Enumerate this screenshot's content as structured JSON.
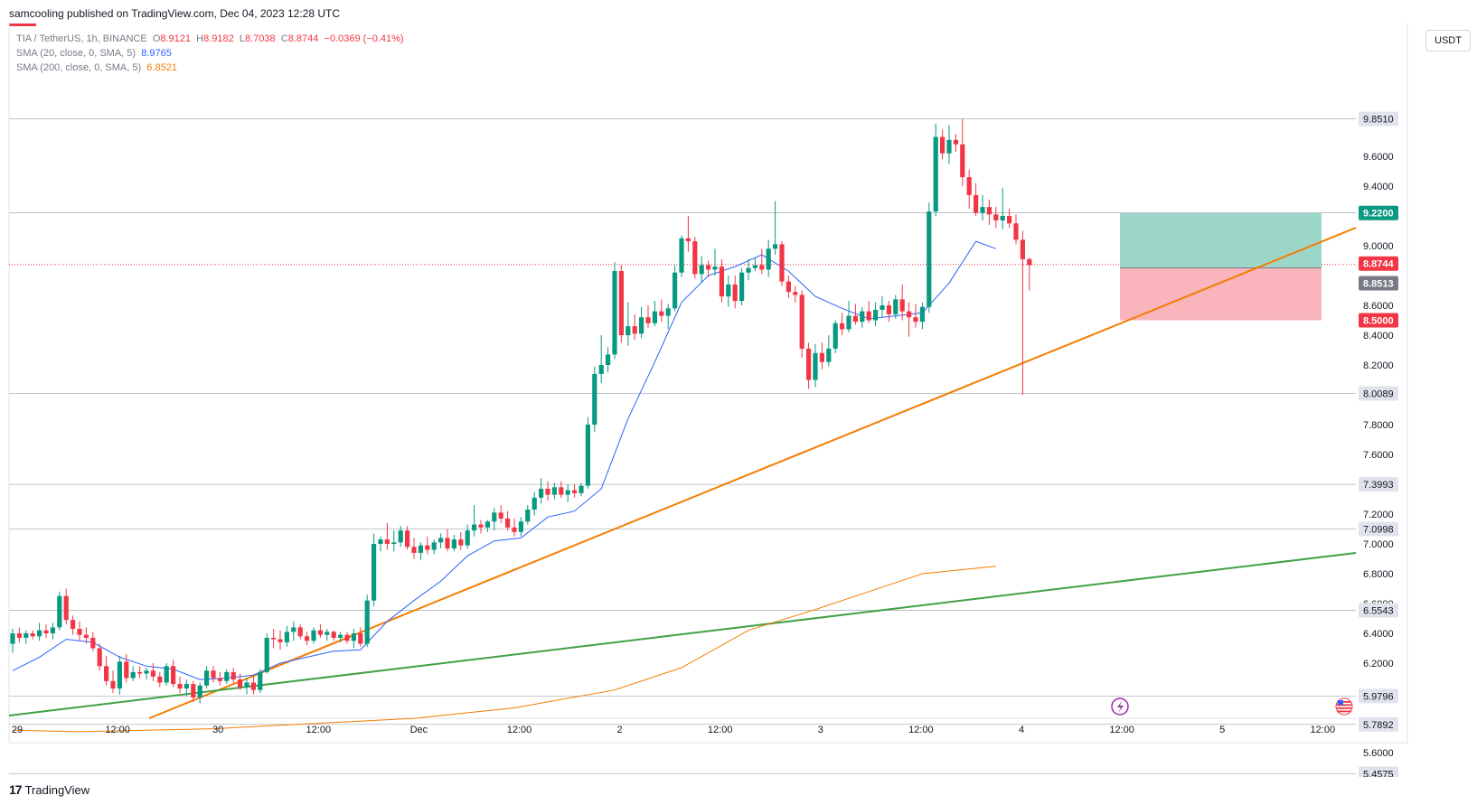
{
  "header": {
    "publisher": "samcooling published on TradingView.com, Dec 04, 2023 12:28 UTC",
    "underline_color": "#f23645"
  },
  "legend": {
    "symbol": "TIA / TetherUS, 1h, BINANCE",
    "ohlc": {
      "o_label": "O",
      "o": "8.9121",
      "h_label": "H",
      "h": "8.9182",
      "l_label": "L",
      "l": "8.7038",
      "c_label": "C",
      "c": "8.8744",
      "change": "−0.0369 (−0.41%)"
    },
    "sma20": {
      "label": "SMA (20, close, 0, SMA, 5)",
      "value": "8.9765",
      "color": "#2962ff"
    },
    "sma200": {
      "label": "SMA (200, close, 0, SMA, 5)",
      "value": "6.8521",
      "color": "#f57c00"
    }
  },
  "currency_button": "USDT",
  "footer": {
    "brand": "TradingView",
    "brand_mark": "17"
  },
  "chart_data": {
    "type": "candlestick",
    "ylim": [
      5.4,
      9.9
    ],
    "y_ticks": [
      "9.6000",
      "9.4000",
      "9.0000",
      "8.6000",
      "8.4000",
      "8.2000",
      "7.8000",
      "7.6000",
      "7.2000",
      "7.0000",
      "6.8000",
      "6.6000",
      "6.4000",
      "6.2000",
      "5.6000"
    ],
    "x_ticks": [
      "29",
      "12:00",
      "30",
      "12:00",
      "Dec",
      "12:00",
      "2",
      "12:00",
      "3",
      "12:00",
      "4",
      "12:00",
      "5",
      "12:00"
    ],
    "horizontal_levels": [
      "9.8510",
      "9.2207",
      "8.0089",
      "7.3993",
      "7.0998",
      "6.5543",
      "5.9796",
      "5.7892",
      "5.4575"
    ],
    "current_price": {
      "value": "8.8744",
      "color": "#f23645"
    },
    "price_badges": [
      {
        "value": "9.2200",
        "color": "#089981"
      },
      {
        "value": "8.8744",
        "color": "#f23645"
      },
      {
        "value": "8.8513",
        "color": "#787b86"
      },
      {
        "value": "8.5000",
        "color": "#f23645"
      }
    ],
    "position": {
      "entry": 8.8513,
      "target": 9.22,
      "stop": 8.5,
      "profit_color": "#9cd6c9",
      "loss_color": "#f9b5bb"
    },
    "up_color": "#089981",
    "down_color": "#f23645",
    "candles": [
      [
        6.33,
        6.43,
        6.27,
        6.4
      ],
      [
        6.4,
        6.44,
        6.34,
        6.37
      ],
      [
        6.37,
        6.42,
        6.33,
        6.4
      ],
      [
        6.4,
        6.42,
        6.36,
        6.38
      ],
      [
        6.38,
        6.47,
        6.35,
        6.42
      ],
      [
        6.42,
        6.46,
        6.37,
        6.4
      ],
      [
        6.4,
        6.47,
        6.36,
        6.44
      ],
      [
        6.44,
        6.68,
        6.42,
        6.65
      ],
      [
        6.65,
        6.7,
        6.46,
        6.49
      ],
      [
        6.49,
        6.52,
        6.39,
        6.43
      ],
      [
        6.43,
        6.48,
        6.35,
        6.39
      ],
      [
        6.39,
        6.44,
        6.33,
        6.37
      ],
      [
        6.37,
        6.41,
        6.28,
        6.3
      ],
      [
        6.3,
        6.33,
        6.15,
        6.18
      ],
      [
        6.18,
        6.25,
        6.05,
        6.08
      ],
      [
        6.08,
        6.15,
        6.0,
        6.03
      ],
      [
        6.03,
        6.25,
        5.99,
        6.21
      ],
      [
        6.21,
        6.26,
        6.07,
        6.1
      ],
      [
        6.1,
        6.18,
        6.08,
        6.14
      ],
      [
        6.14,
        6.18,
        6.1,
        6.13
      ],
      [
        6.13,
        6.17,
        6.09,
        6.15
      ],
      [
        6.15,
        6.2,
        6.08,
        6.11
      ],
      [
        6.11,
        6.14,
        6.04,
        6.07
      ],
      [
        6.07,
        6.2,
        6.05,
        6.18
      ],
      [
        6.18,
        6.22,
        6.04,
        6.06
      ],
      [
        6.06,
        6.11,
        6.0,
        6.03
      ],
      [
        6.03,
        6.09,
        5.98,
        6.06
      ],
      [
        6.06,
        6.08,
        5.94,
        5.97
      ],
      [
        5.97,
        6.07,
        5.93,
        6.05
      ],
      [
        6.05,
        6.18,
        6.03,
        6.15
      ],
      [
        6.15,
        6.18,
        6.07,
        6.1
      ],
      [
        6.1,
        6.14,
        6.05,
        6.08
      ],
      [
        6.08,
        6.16,
        6.06,
        6.14
      ],
      [
        6.14,
        6.17,
        6.07,
        6.09
      ],
      [
        6.09,
        6.13,
        6.02,
        6.04
      ],
      [
        6.04,
        6.1,
        5.99,
        6.07
      ],
      [
        6.07,
        6.12,
        5.99,
        6.02
      ],
      [
        6.02,
        6.16,
        6.0,
        6.14
      ],
      [
        6.14,
        6.4,
        6.13,
        6.37
      ],
      [
        6.37,
        6.43,
        6.3,
        6.36
      ],
      [
        6.36,
        6.42,
        6.29,
        6.34
      ],
      [
        6.34,
        6.45,
        6.31,
        6.41
      ],
      [
        6.41,
        6.48,
        6.35,
        6.44
      ],
      [
        6.44,
        6.46,
        6.36,
        6.38
      ],
      [
        6.38,
        6.41,
        6.32,
        6.35
      ],
      [
        6.35,
        6.44,
        6.33,
        6.42
      ],
      [
        6.42,
        6.46,
        6.37,
        6.39
      ],
      [
        6.39,
        6.43,
        6.35,
        6.41
      ],
      [
        6.41,
        6.42,
        6.35,
        6.37
      ],
      [
        6.37,
        6.41,
        6.34,
        6.39
      ],
      [
        6.39,
        6.41,
        6.33,
        6.35
      ],
      [
        6.35,
        6.43,
        6.3,
        6.4
      ],
      [
        6.4,
        6.44,
        6.31,
        6.33
      ],
      [
        6.33,
        6.66,
        6.31,
        6.62
      ],
      [
        6.62,
        7.07,
        6.58,
        7.0
      ],
      [
        7.0,
        7.05,
        6.95,
        7.03
      ],
      [
        7.03,
        7.14,
        6.96,
        7.0
      ],
      [
        7.0,
        7.09,
        6.95,
        7.01
      ],
      [
        7.01,
        7.12,
        6.98,
        7.09
      ],
      [
        7.09,
        7.12,
        6.96,
        6.98
      ],
      [
        6.98,
        7.04,
        6.9,
        6.94
      ],
      [
        6.94,
        7.01,
        6.89,
        6.99
      ],
      [
        6.99,
        7.05,
        6.93,
        6.96
      ],
      [
        6.96,
        7.03,
        6.93,
        7.01
      ],
      [
        7.01,
        7.07,
        6.97,
        7.04
      ],
      [
        7.04,
        7.1,
        6.95,
        6.97
      ],
      [
        6.97,
        7.06,
        6.95,
        7.03
      ],
      [
        7.03,
        7.08,
        6.96,
        6.99
      ],
      [
        6.99,
        7.13,
        6.97,
        7.09
      ],
      [
        7.09,
        7.26,
        7.05,
        7.13
      ],
      [
        7.13,
        7.16,
        7.07,
        7.11
      ],
      [
        7.11,
        7.16,
        7.08,
        7.15
      ],
      [
        7.15,
        7.24,
        7.09,
        7.21
      ],
      [
        7.21,
        7.26,
        7.14,
        7.17
      ],
      [
        7.17,
        7.22,
        7.09,
        7.11
      ],
      [
        7.11,
        7.17,
        7.05,
        7.08
      ],
      [
        7.08,
        7.18,
        7.05,
        7.15
      ],
      [
        7.15,
        7.26,
        7.13,
        7.23
      ],
      [
        7.23,
        7.35,
        7.19,
        7.31
      ],
      [
        7.31,
        7.44,
        7.27,
        7.37
      ],
      [
        7.37,
        7.42,
        7.29,
        7.33
      ],
      [
        7.33,
        7.41,
        7.3,
        7.38
      ],
      [
        7.38,
        7.42,
        7.31,
        7.33
      ],
      [
        7.33,
        7.4,
        7.28,
        7.36
      ],
      [
        7.36,
        7.4,
        7.31,
        7.34
      ],
      [
        7.34,
        7.41,
        7.32,
        7.39
      ],
      [
        7.39,
        7.85,
        7.37,
        7.8
      ],
      [
        7.8,
        8.19,
        7.75,
        8.14
      ],
      [
        8.14,
        8.4,
        8.08,
        8.2
      ],
      [
        8.2,
        8.32,
        8.15,
        8.27
      ],
      [
        8.27,
        8.89,
        8.24,
        8.83
      ],
      [
        8.83,
        8.87,
        8.35,
        8.4
      ],
      [
        8.4,
        8.62,
        8.33,
        8.46
      ],
      [
        8.46,
        8.54,
        8.37,
        8.41
      ],
      [
        8.41,
        8.59,
        8.38,
        8.52
      ],
      [
        8.52,
        8.6,
        8.45,
        8.48
      ],
      [
        8.48,
        8.63,
        8.46,
        8.56
      ],
      [
        8.56,
        8.64,
        8.49,
        8.53
      ],
      [
        8.53,
        8.61,
        8.44,
        8.58
      ],
      [
        8.58,
        8.87,
        8.56,
        8.82
      ],
      [
        8.82,
        9.07,
        8.79,
        9.05
      ],
      [
        9.05,
        9.2,
        8.96,
        9.03
      ],
      [
        9.03,
        9.06,
        8.78,
        8.81
      ],
      [
        8.81,
        8.93,
        8.75,
        8.87
      ],
      [
        8.87,
        8.9,
        8.79,
        8.84
      ],
      [
        8.84,
        8.98,
        8.8,
        8.86
      ],
      [
        8.86,
        8.91,
        8.62,
        8.66
      ],
      [
        8.66,
        8.8,
        8.59,
        8.74
      ],
      [
        8.74,
        8.8,
        8.58,
        8.63
      ],
      [
        8.63,
        8.85,
        8.6,
        8.82
      ],
      [
        8.82,
        8.91,
        8.77,
        8.85
      ],
      [
        8.85,
        8.92,
        8.83,
        8.87
      ],
      [
        8.87,
        8.98,
        8.81,
        8.84
      ],
      [
        8.84,
        9.04,
        8.79,
        8.98
      ],
      [
        8.98,
        9.3,
        8.94,
        9.01
      ],
      [
        9.01,
        9.03,
        8.73,
        8.76
      ],
      [
        8.76,
        8.8,
        8.65,
        8.69
      ],
      [
        8.69,
        8.73,
        8.62,
        8.67
      ],
      [
        8.67,
        8.7,
        8.25,
        8.31
      ],
      [
        8.31,
        8.35,
        8.04,
        8.1
      ],
      [
        8.1,
        8.34,
        8.05,
        8.28
      ],
      [
        8.28,
        8.35,
        8.17,
        8.22
      ],
      [
        8.22,
        8.4,
        8.19,
        8.31
      ],
      [
        8.31,
        8.5,
        8.28,
        8.48
      ],
      [
        8.48,
        8.55,
        8.4,
        8.44
      ],
      [
        8.44,
        8.63,
        8.42,
        8.53
      ],
      [
        8.53,
        8.61,
        8.47,
        8.49
      ],
      [
        8.49,
        8.59,
        8.45,
        8.56
      ],
      [
        8.56,
        8.63,
        8.48,
        8.5
      ],
      [
        8.5,
        8.62,
        8.46,
        8.57
      ],
      [
        8.57,
        8.66,
        8.52,
        8.6
      ],
      [
        8.6,
        8.63,
        8.49,
        8.54
      ],
      [
        8.54,
        8.67,
        8.51,
        8.64
      ],
      [
        8.64,
        8.74,
        8.5,
        8.56
      ],
      [
        8.56,
        8.62,
        8.39,
        8.52
      ],
      [
        8.52,
        8.61,
        8.45,
        8.49
      ],
      [
        8.49,
        8.62,
        8.44,
        8.59
      ],
      [
        8.59,
        9.29,
        8.55,
        9.23
      ],
      [
        9.23,
        9.82,
        9.2,
        9.73
      ],
      [
        9.73,
        9.78,
        9.58,
        9.62
      ],
      [
        9.62,
        9.81,
        9.55,
        9.71
      ],
      [
        9.71,
        9.75,
        9.63,
        9.68
      ],
      [
        9.68,
        9.85,
        9.4,
        9.46
      ],
      [
        9.46,
        9.51,
        9.25,
        9.34
      ],
      [
        9.34,
        9.42,
        9.2,
        9.22
      ],
      [
        9.22,
        9.34,
        9.17,
        9.26
      ],
      [
        9.26,
        9.31,
        9.14,
        9.21
      ],
      [
        9.21,
        9.26,
        9.12,
        9.17
      ],
      [
        9.17,
        9.39,
        9.11,
        9.2
      ],
      [
        9.2,
        9.25,
        9.12,
        9.15
      ],
      [
        9.15,
        9.21,
        9.01,
        9.04
      ],
      [
        9.04,
        9.1,
        8.0,
        8.91
      ],
      [
        8.91,
        8.92,
        8.7,
        8.87
      ]
    ],
    "sma20_points": [
      [
        0,
        6.15
      ],
      [
        4,
        6.24
      ],
      [
        8,
        6.36
      ],
      [
        12,
        6.34
      ],
      [
        16,
        6.24
      ],
      [
        20,
        6.18
      ],
      [
        24,
        6.16
      ],
      [
        28,
        6.09
      ],
      [
        32,
        6.1
      ],
      [
        36,
        6.12
      ],
      [
        40,
        6.2
      ],
      [
        44,
        6.24
      ],
      [
        48,
        6.28
      ],
      [
        52,
        6.29
      ],
      [
        56,
        6.48
      ],
      [
        60,
        6.62
      ],
      [
        64,
        6.75
      ],
      [
        68,
        6.92
      ],
      [
        72,
        7.02
      ],
      [
        76,
        7.04
      ],
      [
        80,
        7.18
      ],
      [
        84,
        7.22
      ],
      [
        88,
        7.37
      ],
      [
        92,
        7.84
      ],
      [
        96,
        8.22
      ],
      [
        100,
        8.62
      ],
      [
        104,
        8.8
      ],
      [
        108,
        8.86
      ],
      [
        112,
        8.94
      ],
      [
        116,
        8.83
      ],
      [
        120,
        8.66
      ],
      [
        124,
        8.58
      ],
      [
        128,
        8.51
      ],
      [
        132,
        8.53
      ],
      [
        136,
        8.55
      ],
      [
        140,
        8.75
      ],
      [
        144,
        9.03
      ],
      [
        147,
        8.98
      ]
    ],
    "sma200_points": [
      [
        0,
        5.75
      ],
      [
        10,
        5.74
      ],
      [
        30,
        5.76
      ],
      [
        60,
        5.83
      ],
      [
        75,
        5.9
      ],
      [
        90,
        6.02
      ],
      [
        100,
        6.17
      ],
      [
        110,
        6.42
      ],
      [
        120,
        6.56
      ],
      [
        128,
        6.68
      ],
      [
        136,
        6.8
      ],
      [
        147,
        6.85
      ]
    ]
  }
}
